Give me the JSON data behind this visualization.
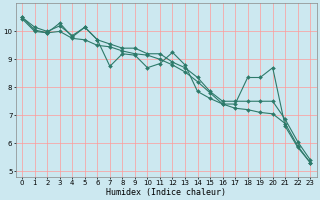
{
  "xlabel": "Humidex (Indice chaleur)",
  "ylabel": "",
  "bg_color": "#cce8f0",
  "grid_color": "#ff9999",
  "line_color": "#2d7a6a",
  "xlim": [
    -0.5,
    23.5
  ],
  "ylim": [
    4.8,
    11.0
  ],
  "xticks": [
    0,
    1,
    2,
    3,
    4,
    5,
    6,
    7,
    8,
    9,
    10,
    11,
    12,
    13,
    14,
    15,
    16,
    17,
    18,
    19,
    20,
    21,
    22,
    23
  ],
  "yticks": [
    5,
    6,
    7,
    8,
    9,
    10
  ],
  "line1_x": [
    0,
    1,
    2,
    3,
    4,
    5,
    6,
    7,
    8,
    9,
    10,
    11,
    12,
    13,
    14,
    15,
    16,
    17,
    18,
    19,
    20,
    21,
    22,
    23
  ],
  "line1_y": [
    10.5,
    10.15,
    10.0,
    10.2,
    9.85,
    10.15,
    9.7,
    8.75,
    9.2,
    9.15,
    8.7,
    8.85,
    9.25,
    8.8,
    7.85,
    7.6,
    7.4,
    7.4,
    8.35,
    8.35,
    8.7,
    6.6,
    5.85,
    5.3
  ],
  "line2_x": [
    0,
    1,
    2,
    3,
    4,
    5,
    6,
    7,
    8,
    9,
    10,
    11,
    12,
    13,
    14,
    15,
    16,
    17,
    18,
    19,
    20,
    21,
    22,
    23
  ],
  "line2_y": [
    10.5,
    10.05,
    9.95,
    10.3,
    9.8,
    10.15,
    9.7,
    9.55,
    9.4,
    9.4,
    9.2,
    9.2,
    8.9,
    8.7,
    8.35,
    7.85,
    7.5,
    7.5,
    7.5,
    7.5,
    7.5,
    6.85,
    6.05,
    5.4
  ],
  "line3_x": [
    0,
    1,
    2,
    3,
    4,
    5,
    6,
    7,
    8,
    9,
    10,
    11,
    12,
    13,
    14,
    15,
    16,
    17,
    18,
    19,
    20,
    21,
    22,
    23
  ],
  "line3_y": [
    10.45,
    10.0,
    9.95,
    10.0,
    9.75,
    9.7,
    9.5,
    9.45,
    9.3,
    9.2,
    9.15,
    9.0,
    8.8,
    8.55,
    8.2,
    7.8,
    7.4,
    7.25,
    7.2,
    7.1,
    7.05,
    6.7,
    5.9,
    5.3
  ],
  "tick_fontsize": 5.0,
  "xlabel_fontsize": 6.0,
  "marker_size": 2.0,
  "line_width": 0.8
}
